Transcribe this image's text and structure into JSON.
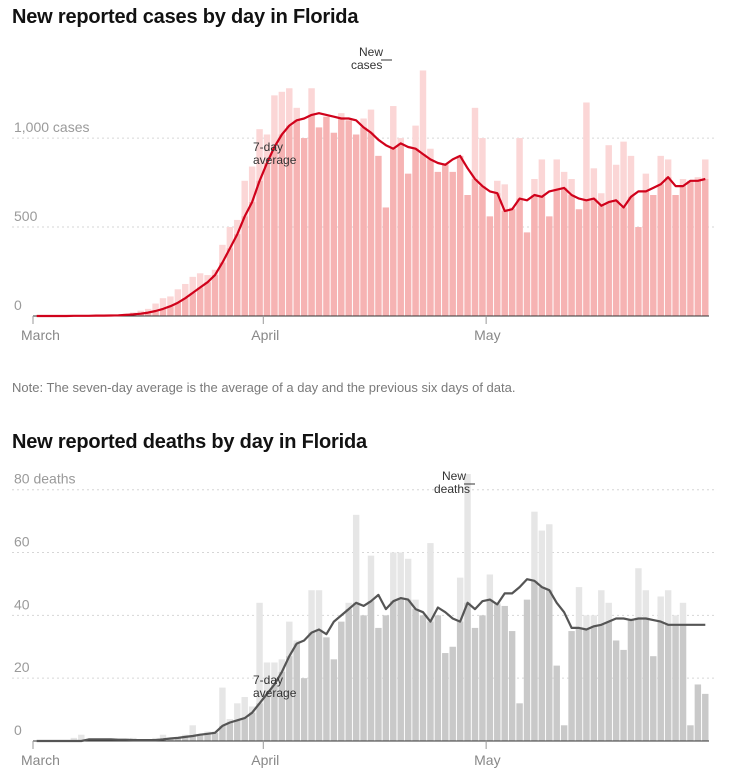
{
  "note": "Note: The seven-day average is the average of a day and the previous six days of data.",
  "chart_data": [
    {
      "type": "bar",
      "title": "New reported cases by day in Florida",
      "subtitle": "",
      "xlabel": "",
      "ylabel": "",
      "ylim": [
        0,
        1450
      ],
      "grid": true,
      "y_ticks": [
        {
          "value": 0,
          "label": "0"
        },
        {
          "value": 500,
          "label": "500"
        },
        {
          "value": 1000,
          "label": "1,000 cases"
        }
      ],
      "x_ticks": [
        {
          "index": 0,
          "label": "March"
        },
        {
          "index": 31,
          "label": "April"
        },
        {
          "index": 61,
          "label": "May"
        }
      ],
      "bar_annotation": "New cases",
      "avg_annotation": "7-day average",
      "colors": {
        "bar": "#f6b3b3",
        "bar_light": "#fbd6d6",
        "line": "#d0021b"
      },
      "series": [
        {
          "name": "New cases",
          "values": [
            0,
            0,
            0,
            0,
            0,
            2,
            0,
            2,
            4,
            3,
            5,
            8,
            12,
            20,
            30,
            40,
            70,
            100,
            110,
            150,
            180,
            220,
            240,
            230,
            260,
            400,
            500,
            540,
            760,
            840,
            1050,
            1020,
            1240,
            1260,
            1280,
            1170,
            1000,
            1280,
            1060,
            1120,
            1030,
            1140,
            1100,
            1020,
            1110,
            1160,
            900,
            610,
            1180,
            1000,
            800,
            1070,
            1380,
            940,
            810,
            860,
            810,
            900,
            680,
            1170,
            1000,
            560,
            760,
            740,
            610,
            1000,
            470,
            770,
            880,
            560,
            880,
            810,
            770,
            600,
            1200,
            830,
            690,
            960,
            850,
            980,
            900,
            500,
            800,
            680,
            900,
            880,
            680,
            770,
            760,
            780,
            880
          ]
        }
      ],
      "average": [
        0,
        0,
        0,
        0,
        0,
        1,
        1,
        1,
        2,
        2,
        3,
        4,
        6,
        9,
        13,
        19,
        28,
        40,
        55,
        75,
        100,
        130,
        160,
        190,
        230,
        300,
        380,
        460,
        560,
        640,
        760,
        860,
        950,
        1020,
        1070,
        1100,
        1110,
        1130,
        1140,
        1130,
        1120,
        1110,
        1110,
        1100,
        1060,
        1030,
        990,
        960,
        940,
        970,
        950,
        940,
        910,
        880,
        860,
        850,
        880,
        900,
        830,
        770,
        730,
        700,
        690,
        590,
        600,
        660,
        650,
        680,
        670,
        700,
        710,
        720,
        680,
        660,
        650,
        660,
        620,
        640,
        650,
        610,
        670,
        700,
        700,
        720,
        740,
        780,
        730,
        730,
        760,
        760,
        770
      ]
    },
    {
      "type": "bar",
      "title": "New reported deaths by day in Florida",
      "subtitle": "",
      "xlabel": "",
      "ylabel": "",
      "ylim": [
        0,
        85
      ],
      "grid": true,
      "y_ticks": [
        {
          "value": 0,
          "label": "0"
        },
        {
          "value": 20,
          "label": "20"
        },
        {
          "value": 40,
          "label": "40"
        },
        {
          "value": 60,
          "label": "60"
        },
        {
          "value": 80,
          "label": "80 deaths"
        }
      ],
      "x_ticks": [
        {
          "index": 0,
          "label": "March"
        },
        {
          "index": 31,
          "label": "April"
        },
        {
          "index": 61,
          "label": "May"
        }
      ],
      "bar_annotation": "New deaths",
      "avg_annotation": "7-day average",
      "colors": {
        "bar": "#c9c9c9",
        "bar_light": "#e6e6e6",
        "line": "#555555"
      },
      "series": [
        {
          "name": "New deaths",
          "values": [
            0,
            0,
            0,
            0,
            0,
            1,
            2,
            0,
            0,
            0,
            0,
            0,
            0,
            1,
            0,
            0,
            1,
            2,
            1,
            1,
            2,
            5,
            2,
            3,
            3,
            17,
            7,
            12,
            14,
            11,
            44,
            25,
            25,
            26,
            38,
            32,
            20,
            48,
            48,
            33,
            26,
            38,
            44,
            72,
            40,
            59,
            36,
            40,
            60,
            60,
            58,
            45,
            40,
            63,
            40,
            28,
            30,
            52,
            85,
            36,
            40,
            53,
            44,
            43,
            35,
            12,
            45,
            73,
            67,
            69,
            24,
            5,
            35,
            49,
            40,
            40,
            48,
            44,
            32,
            29,
            39,
            55,
            48,
            27,
            46,
            48,
            40,
            44,
            5,
            18,
            15
          ]
        }
      ],
      "average": [
        0,
        0,
        0,
        0,
        0,
        0,
        0,
        0.5,
        0.5,
        0.5,
        0.5,
        0.4,
        0.4,
        0.3,
        0.3,
        0.3,
        0.3,
        0.5,
        0.8,
        1,
        1.3,
        1.6,
        2,
        2.3,
        2.6,
        4.8,
        5.9,
        6.6,
        7.3,
        9,
        12,
        15,
        18,
        22,
        27,
        31,
        32,
        34.5,
        35.5,
        34,
        38,
        40,
        42,
        44,
        43,
        44.5,
        46.5,
        42,
        44.5,
        45.5,
        45,
        42,
        41,
        38,
        42.5,
        41,
        39,
        38,
        44,
        42,
        44.5,
        45,
        43.5,
        47,
        47,
        49,
        51.5,
        51,
        49,
        48,
        44,
        41,
        36,
        36,
        35.5,
        36.5,
        37,
        38,
        39,
        39,
        38.5,
        39,
        39,
        38.5,
        38,
        37,
        37,
        37,
        37,
        37,
        37
      ]
    }
  ]
}
